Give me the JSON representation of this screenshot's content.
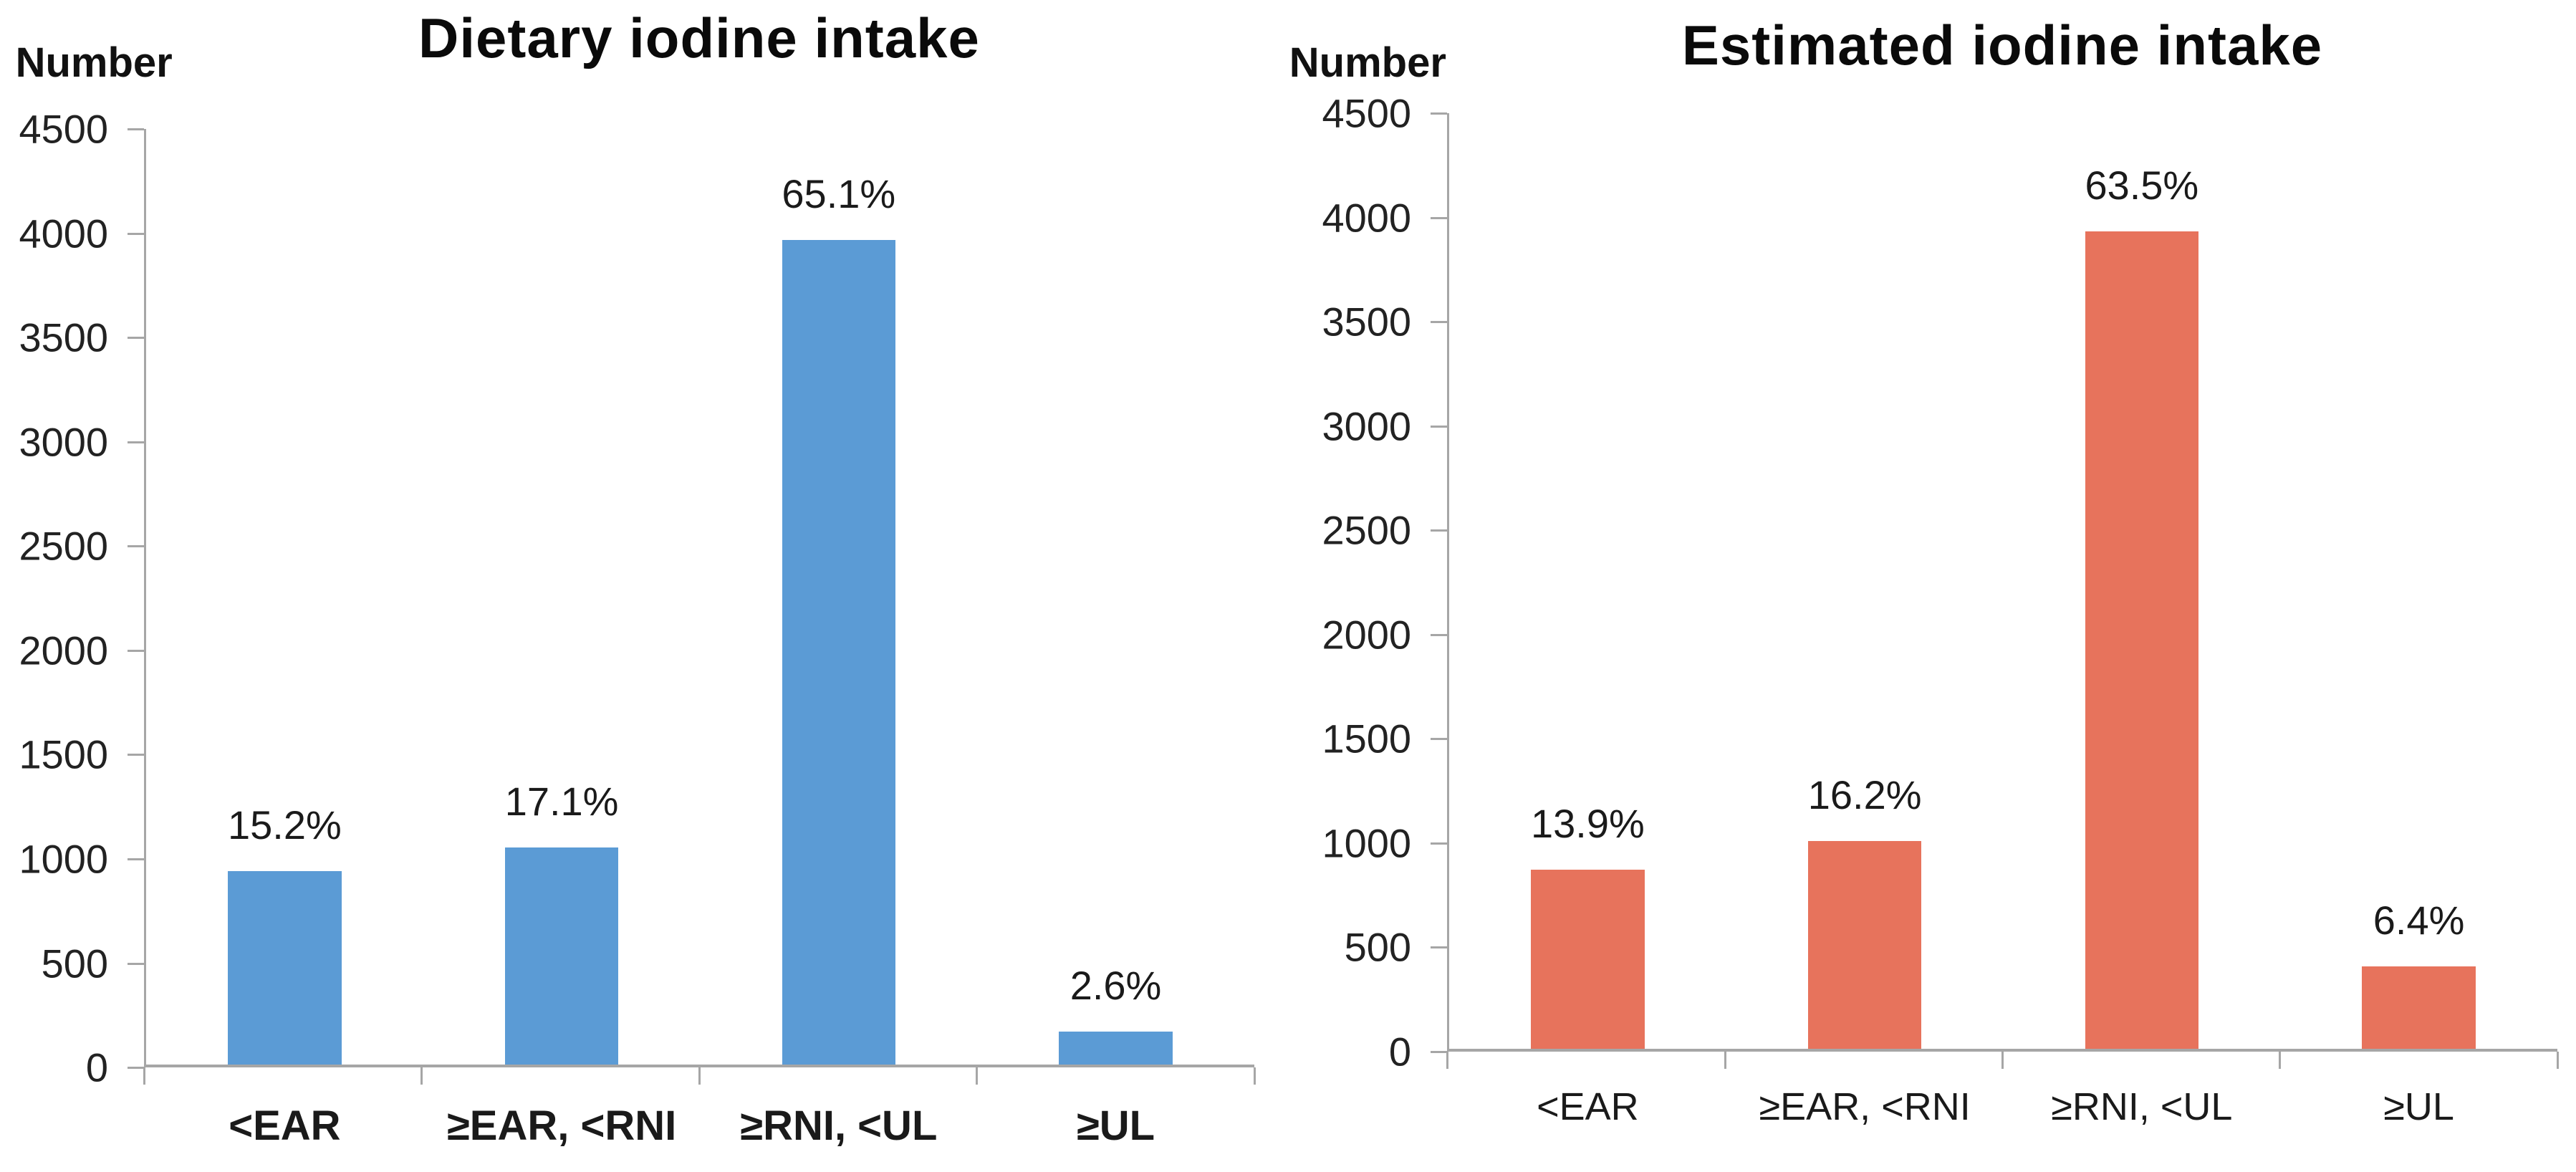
{
  "page_background": "#ffffff",
  "chart_data": [
    {
      "type": "bar",
      "title": "Dietary iodine intake",
      "ylabel": "Number",
      "categories": [
        "<EAR",
        "≥EAR, <RNI",
        "≥RNI, <UL",
        "≥UL"
      ],
      "values": [
        930,
        1045,
        3965,
        160
      ],
      "value_labels": [
        "15.2%",
        "17.1%",
        "65.1%",
        "2.6%"
      ],
      "bar_color": "#5B9BD5",
      "axis_color": "#A6A6A6",
      "ylim": [
        0,
        4500
      ],
      "ytick_step": 500,
      "ytick_labels": [
        "4500",
        "4000",
        "3500",
        "3000",
        "2500",
        "2000",
        "1500",
        "1000",
        "500",
        "0"
      ],
      "grid": "off",
      "legend": "none"
    },
    {
      "type": "bar",
      "title": "Estimated iodine intake",
      "ylabel": "Number",
      "categories": [
        "<EAR",
        "≥EAR, <RNI",
        "≥RNI, <UL",
        "≥UL"
      ],
      "values": [
        860,
        1000,
        3930,
        395
      ],
      "value_labels": [
        "13.9%",
        "16.2%",
        "63.5%",
        "6.4%"
      ],
      "bar_color": "#E7735C",
      "axis_color": "#A6A6A6",
      "ylim": [
        0,
        4500
      ],
      "ytick_step": 500,
      "ytick_labels": [
        "4500",
        "4000",
        "3500",
        "3000",
        "2500",
        "2000",
        "1500",
        "1000",
        "500",
        "0"
      ],
      "grid": "off",
      "legend": "none"
    }
  ]
}
